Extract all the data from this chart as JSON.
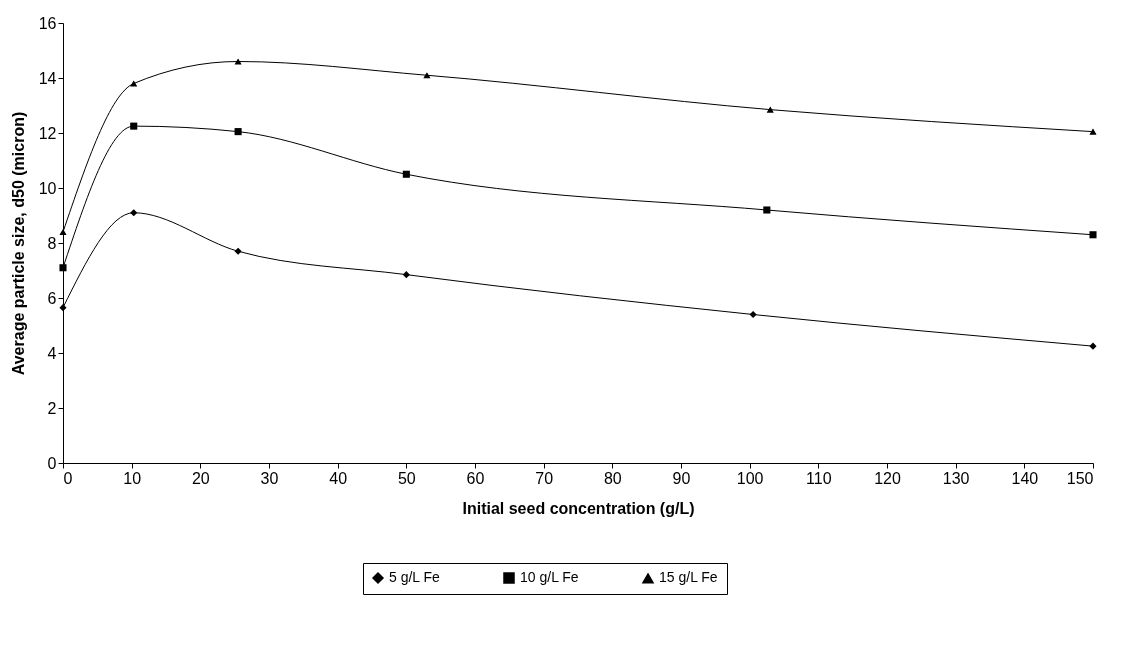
{
  "chart_data": {
    "type": "line",
    "xlabel": "Initial seed concentration (g/L)",
    "ylabel": "Average particle size, d50 (micron)",
    "xlim": [
      0,
      150
    ],
    "xticks": [
      0,
      10,
      20,
      30,
      40,
      50,
      60,
      70,
      80,
      90,
      100,
      110,
      120,
      130,
      140,
      150
    ],
    "ylim": [
      0,
      16
    ],
    "yticks": [
      0,
      2,
      4,
      6,
      8,
      10,
      12,
      14,
      16
    ],
    "grid": false,
    "legend": "bottom",
    "line_style": "solid",
    "series": [
      {
        "name": "5 g/L Fe",
        "color": "#000000",
        "marker": "diamond",
        "x": [
          0,
          10.3,
          25.5,
          50,
          100.5,
          150
        ],
        "values": [
          5.65,
          9.1,
          7.7,
          6.85,
          5.4,
          4.25
        ]
      },
      {
        "name": "10 g/L Fe",
        "color": "#000000",
        "marker": "square",
        "x": [
          0,
          10.3,
          25.5,
          50,
          102.5,
          150
        ],
        "values": [
          7.1,
          12.25,
          12.05,
          10.5,
          9.2,
          8.3
        ]
      },
      {
        "name": "15 g/L Fe",
        "color": "#000000",
        "marker": "triangle",
        "x": [
          0,
          10.3,
          25.5,
          53,
          103,
          150
        ],
        "values": [
          8.4,
          13.8,
          14.6,
          14.1,
          12.85,
          12.05
        ]
      }
    ]
  }
}
